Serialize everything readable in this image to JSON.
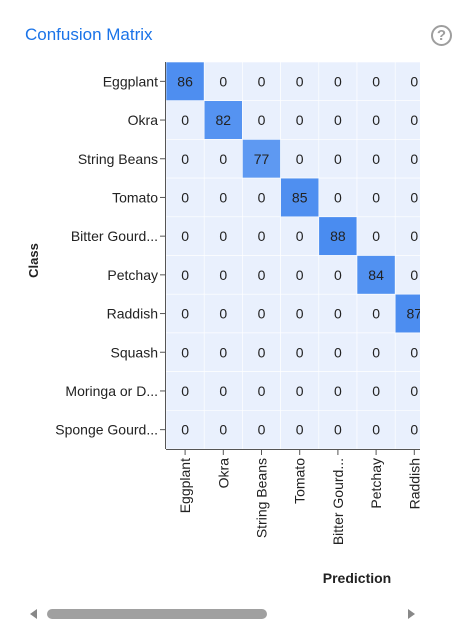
{
  "chart_data": {
    "type": "heatmap",
    "title": "Confusion Matrix",
    "xlabel": "Prediction",
    "ylabel": "Class",
    "rows": [
      "Eggplant",
      "Okra",
      "String Beans",
      "Tomato",
      "Bitter Gourd...",
      "Petchay",
      "Raddish",
      "Squash",
      "Moringa or D...",
      "Sponge Gourd..."
    ],
    "columns": [
      "Eggplant",
      "Okra",
      "String Beans",
      "Tomato",
      "Bitter Gourd...",
      "Petchay",
      "Raddish"
    ],
    "values": [
      [
        86,
        0,
        0,
        0,
        0,
        0,
        0
      ],
      [
        0,
        82,
        0,
        0,
        0,
        0,
        0
      ],
      [
        0,
        0,
        77,
        0,
        0,
        0,
        0
      ],
      [
        0,
        0,
        0,
        85,
        0,
        0,
        0
      ],
      [
        0,
        0,
        0,
        0,
        88,
        0,
        0
      ],
      [
        0,
        0,
        0,
        0,
        0,
        84,
        0
      ],
      [
        0,
        0,
        0,
        0,
        0,
        0,
        87
      ],
      [
        0,
        0,
        0,
        0,
        0,
        0,
        0
      ],
      [
        0,
        0,
        0,
        0,
        0,
        0,
        0
      ],
      [
        0,
        0,
        0,
        0,
        0,
        0,
        0
      ]
    ],
    "colors": {
      "high": "#4a8cf0",
      "low": "#e9f0fd",
      "title": "#1a73e8"
    }
  },
  "ui": {
    "help_icon": "question-circle-icon",
    "help_glyph": "?"
  }
}
